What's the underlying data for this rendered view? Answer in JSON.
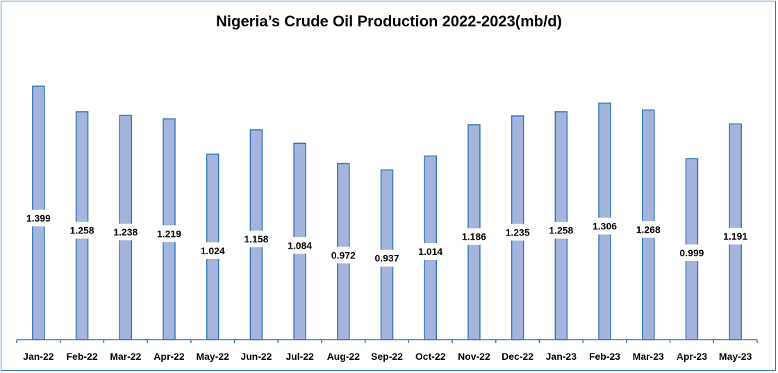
{
  "chart_data": {
    "type": "bar",
    "title": "Nigeria’s Crude Oil Production 2022-2023(mb/d)",
    "categories": [
      "Jan-22",
      "Feb-22",
      "Mar-22",
      "Apr-22",
      "May-22",
      "Jun-22",
      "Jul-22",
      "Aug-22",
      "Sep-22",
      "Oct-22",
      "Nov-22",
      "Dec-22",
      "Jan-23",
      "Feb-23",
      "Mar-23",
      "Apr-23",
      "May-23"
    ],
    "values": [
      1.399,
      1.258,
      1.238,
      1.219,
      1.024,
      1.158,
      1.084,
      0.972,
      0.937,
      1.014,
      1.186,
      1.235,
      1.258,
      1.306,
      1.268,
      0.999,
      1.191
    ],
    "data_labels": [
      "1.399",
      "1.258",
      "1.238",
      "1.219",
      "1.024",
      "1.158",
      "1.084",
      "0.972",
      "0.937",
      "1.014",
      "1.186",
      "1.235",
      "1.258",
      "1.306",
      "1.268",
      "0.999",
      "1.191"
    ],
    "xlabel": "",
    "ylabel": "",
    "ylim": [
      0,
      1.45
    ],
    "grid": false,
    "legend": "none",
    "colors": {
      "bar_fill": "#a5b4dc",
      "bar_stroke": "#2e75b6",
      "axis": "#2e75b6",
      "frame": "#2e75b6"
    }
  }
}
